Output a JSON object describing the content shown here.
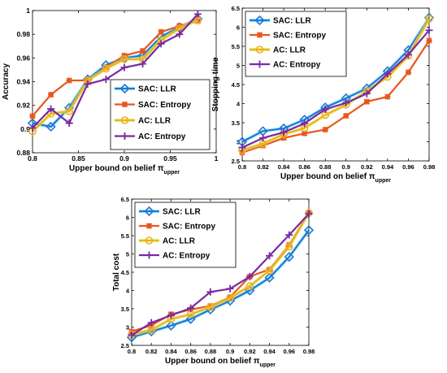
{
  "legend_labels": [
    "SAC: LLR",
    "SAC: Entropy",
    "AC: LLR",
    "AC: Entropy"
  ],
  "colors": {
    "sac_llr": "#1f77d4",
    "sac_entropy": "#e8561e",
    "ac_llr": "#f2b01e",
    "ac_entropy": "#7a2aa0",
    "sac_llr_glow": "#7fe3ff",
    "ac_llr_glow": "#c8f060"
  },
  "chart_data": [
    {
      "type": "line",
      "title": "",
      "xlabel": "Upper bound on belief π",
      "xlabel_sub": "upper",
      "ylabel": "Accuracy",
      "xlim": [
        0.8,
        1.0
      ],
      "ylim": [
        0.88,
        1.0
      ],
      "xticks": [
        0.8,
        0.85,
        0.9,
        0.95,
        1.0
      ],
      "xtick_labels": [
        "0.8",
        "0.85",
        "0.9",
        "0.95",
        "1"
      ],
      "yticks": [
        0.88,
        0.9,
        0.92,
        0.94,
        0.96,
        0.98,
        1.0
      ],
      "ytick_labels": [
        "0.88",
        "0.9",
        "0.92",
        "0.94",
        "0.96",
        "0.98",
        "1"
      ],
      "legend_position": "bottom-right",
      "x": [
        0.8,
        0.82,
        0.84,
        0.86,
        0.88,
        0.9,
        0.92,
        0.94,
        0.96,
        0.98
      ],
      "series": [
        {
          "name": "SAC: LLR",
          "values": [
            0.905,
            0.902,
            0.918,
            0.942,
            0.954,
            0.96,
            0.962,
            0.978,
            0.986,
            0.993
          ]
        },
        {
          "name": "SAC: Entropy",
          "values": [
            0.911,
            0.929,
            0.941,
            0.941,
            0.952,
            0.962,
            0.966,
            0.982,
            0.987,
            0.991
          ]
        },
        {
          "name": "AC: LLR",
          "values": [
            0.898,
            0.913,
            0.915,
            0.941,
            0.951,
            0.959,
            0.959,
            0.975,
            0.985,
            0.992
          ]
        },
        {
          "name": "AC: Entropy",
          "values": [
            0.901,
            0.917,
            0.905,
            0.938,
            0.942,
            0.952,
            0.955,
            0.972,
            0.98,
            0.997
          ]
        }
      ]
    },
    {
      "type": "line",
      "title": "",
      "xlabel": "Upper bound on belief π",
      "xlabel_sub": "upper",
      "ylabel": "Stopping time",
      "xlim": [
        0.8,
        0.98
      ],
      "ylim": [
        2.5,
        6.5
      ],
      "xticks": [
        0.8,
        0.82,
        0.84,
        0.86,
        0.88,
        0.9,
        0.92,
        0.94,
        0.96,
        0.98
      ],
      "xtick_labels": [
        "0.8",
        "0.82",
        "0.84",
        "0.86",
        "0.88",
        "0.9",
        "0.92",
        "0.94",
        "0.96",
        "0.98"
      ],
      "yticks": [
        2.5,
        3,
        3.5,
        4,
        4.5,
        5,
        5.5,
        6,
        6.5
      ],
      "ytick_labels": [
        "2.5",
        "3",
        "3.5",
        "4",
        "4.5",
        "5",
        "5.5",
        "6",
        "6.5"
      ],
      "legend_position": "top-left",
      "x": [
        0.8,
        0.82,
        0.84,
        0.86,
        0.88,
        0.9,
        0.92,
        0.94,
        0.96,
        0.98
      ],
      "series": [
        {
          "name": "SAC: LLR",
          "values": [
            3.0,
            3.28,
            3.35,
            3.58,
            3.9,
            4.14,
            4.4,
            4.85,
            5.4,
            6.25
          ]
        },
        {
          "name": "SAC: Entropy",
          "values": [
            2.72,
            2.9,
            3.1,
            3.22,
            3.32,
            3.68,
            4.05,
            4.18,
            4.82,
            5.65
          ]
        },
        {
          "name": "AC: LLR",
          "values": [
            2.78,
            2.95,
            3.2,
            3.36,
            3.7,
            3.97,
            4.33,
            4.7,
            5.25,
            6.22
          ]
        },
        {
          "name": "AC: Entropy",
          "values": [
            2.85,
            3.1,
            3.25,
            3.48,
            3.85,
            4.02,
            4.26,
            4.78,
            5.28,
            5.92
          ]
        }
      ]
    },
    {
      "type": "line",
      "title": "",
      "xlabel": "Upper bound on belief π",
      "xlabel_sub": "upper",
      "ylabel": "Total cost",
      "xlim": [
        0.8,
        0.98
      ],
      "ylim": [
        2.5,
        6.5
      ],
      "xticks": [
        0.8,
        0.82,
        0.84,
        0.86,
        0.88,
        0.9,
        0.92,
        0.94,
        0.96,
        0.98
      ],
      "xtick_labels": [
        "0.8",
        "0.82",
        "0.84",
        "0.86",
        "0.88",
        "0.9",
        "0.92",
        "0.94",
        "0.96",
        "0.98"
      ],
      "yticks": [
        2.5,
        3,
        3.5,
        4,
        4.5,
        5,
        5.5,
        6,
        6.5
      ],
      "ytick_labels": [
        "2.5",
        "3",
        "3.5",
        "4",
        "4.5",
        "5",
        "5.5",
        "6",
        "6.5"
      ],
      "legend_position": "top-left",
      "x": [
        0.8,
        0.82,
        0.84,
        0.86,
        0.88,
        0.9,
        0.92,
        0.94,
        0.96,
        0.98
      ],
      "series": [
        {
          "name": "SAC: LLR",
          "values": [
            2.72,
            2.88,
            3.04,
            3.22,
            3.48,
            3.72,
            4.0,
            4.35,
            4.92,
            5.65
          ]
        },
        {
          "name": "SAC: Entropy",
          "values": [
            2.88,
            3.05,
            3.35,
            3.48,
            3.58,
            3.82,
            4.38,
            4.58,
            5.25,
            6.12
          ]
        },
        {
          "name": "AC: LLR",
          "values": [
            2.8,
            2.92,
            3.22,
            3.35,
            3.55,
            3.8,
            4.12,
            4.55,
            5.2,
            6.12
          ]
        },
        {
          "name": "AC: Entropy",
          "values": [
            2.78,
            3.12,
            3.32,
            3.52,
            3.96,
            4.05,
            4.38,
            4.95,
            5.52,
            6.1
          ]
        }
      ]
    }
  ]
}
